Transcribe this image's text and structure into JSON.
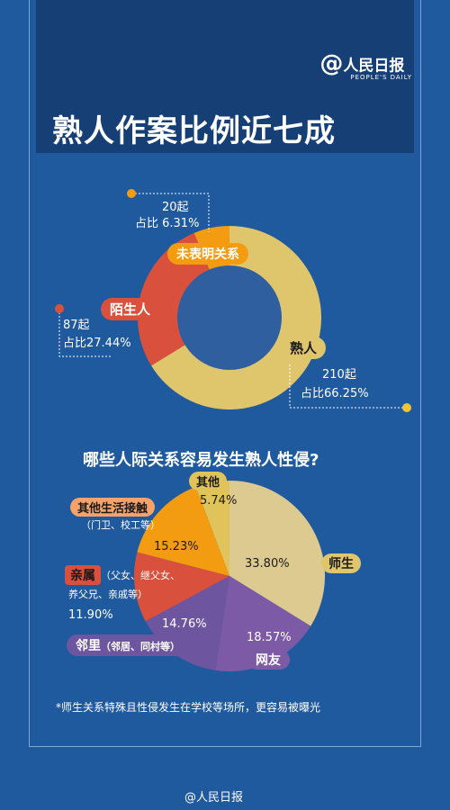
{
  "header": {
    "logo_cn": "人民日报",
    "logo_en": "PEOPLE'S DAILY",
    "title": "熟人作案比例近七成"
  },
  "colors": {
    "bg": "#1f5a9e",
    "header_bg": "#153f75",
    "donut_center": "#2f5f9e",
    "acquaintance": "#dfc56b",
    "stranger": "#d9513c",
    "unspecified": "#f39c12",
    "teacher": "#dcca90",
    "netfriend": "#7d5aa6",
    "neighbor": "#6e55a0",
    "relative": "#d9513c",
    "other_contact": "#f39c12",
    "other": "#e0c35b"
  },
  "chart_data": [
    {
      "type": "pie",
      "donut": true,
      "title": "熟人作案比例近七成",
      "series": [
        {
          "name": "熟人",
          "count_label": "210起",
          "pct_label": "占比66.25%",
          "value": 66.25
        },
        {
          "name": "陌生人",
          "count_label": "87起",
          "pct_label": "占比27.44%",
          "value": 27.44
        },
        {
          "name": "未表明关系",
          "count_label": "20起",
          "pct_label": "占比 6.31%",
          "value": 6.31
        }
      ]
    },
    {
      "type": "pie",
      "title": "哪些人际关系容易发生熟人性侵?",
      "series": [
        {
          "name": "师生",
          "pct_label": "33.80%",
          "value": 33.8
        },
        {
          "name": "网友",
          "pct_label": "18.57%",
          "value": 18.57
        },
        {
          "name": "邻里",
          "sub": "（邻居、同村等）",
          "pct_label": "14.76%",
          "value": 14.76
        },
        {
          "name": "亲属",
          "sub": "（父女、继父女、养父兄、亲戚等）",
          "pct_label": "11.90%",
          "value": 11.9
        },
        {
          "name": "其他生活接触",
          "sub": "（门卫、校工等）",
          "pct_label": "15.23%",
          "value": 15.23
        },
        {
          "name": "其他",
          "pct_label": "5.74%",
          "value": 5.74
        }
      ]
    }
  ],
  "pie2_extra": {
    "relative_sub_line1": "（父女、继父女、",
    "relative_sub_line2": "养父兄、亲戚等）"
  },
  "footnote": "*师生关系特殊且性侵发生在学校等场所，更容易被曝光",
  "weibo": "@人民日报"
}
